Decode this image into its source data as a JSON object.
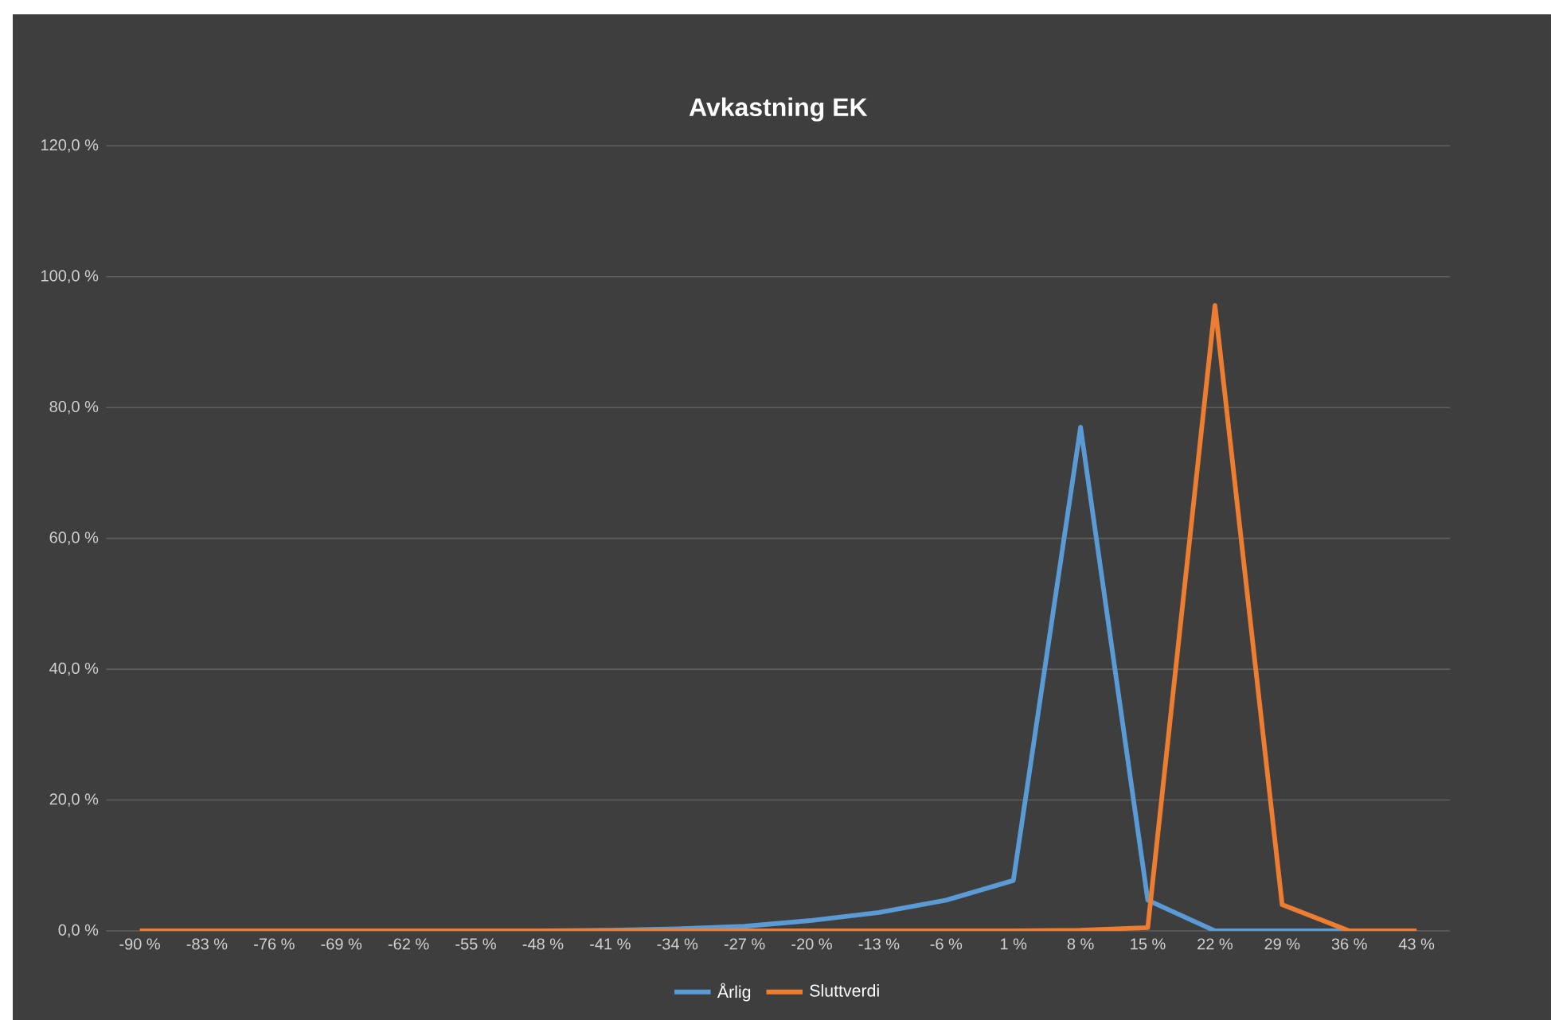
{
  "chart_data": {
    "type": "line",
    "title": "Avkastning EK",
    "categories": [
      "-90 %",
      "-83 %",
      "-76 %",
      "-69 %",
      "-62 %",
      "-55 %",
      "-48 %",
      "-41 %",
      "-34 %",
      "-27 %",
      "-20 %",
      "-13 %",
      "-6 %",
      "1 %",
      "8 %",
      "15 %",
      "22 %",
      "29 %",
      "36 %",
      "43 %"
    ],
    "series": [
      {
        "name": "Årlig",
        "color": "#5b9bd5",
        "values": [
          null,
          null,
          null,
          null,
          null,
          null,
          0,
          0.1,
          0.3,
          0.7,
          1.6,
          2.8,
          4.7,
          7.7,
          77.0,
          4.7,
          0,
          0,
          0,
          0
        ]
      },
      {
        "name": "Sluttverdi",
        "color": "#ed7d31",
        "values": [
          0,
          0,
          0,
          0,
          0,
          0,
          0,
          0,
          0,
          0,
          0,
          0,
          0,
          0,
          0.1,
          0.5,
          95.6,
          4.0,
          0,
          0
        ]
      }
    ],
    "ylim": [
      0,
      120
    ],
    "yticks": [
      {
        "value": 0,
        "label": "0,0 %"
      },
      {
        "value": 20,
        "label": "20,0 %"
      },
      {
        "value": 40,
        "label": "40,0 %"
      },
      {
        "value": 60,
        "label": "60,0 %"
      },
      {
        "value": 80,
        "label": "80,0 %"
      },
      {
        "value": 100,
        "label": "100,0 %"
      },
      {
        "value": 120,
        "label": "120,0 %"
      }
    ],
    "grid": "y",
    "legend": "bottom",
    "marker": "none",
    "line_style": "solid"
  }
}
